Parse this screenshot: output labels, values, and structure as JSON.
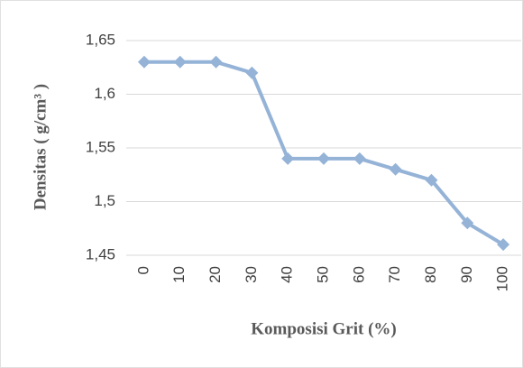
{
  "chart_data": {
    "type": "line",
    "x_label": "Komposisi Grit (%)",
    "y_label": "Densitas ( g/cm³ )",
    "categories": [
      "0",
      "10",
      "20",
      "30",
      "40",
      "50",
      "60",
      "70",
      "80",
      "90",
      "100"
    ],
    "series": [
      {
        "color": "#95b3d7",
        "values": [
          1.63,
          1.63,
          1.63,
          1.62,
          1.54,
          1.54,
          1.54,
          1.53,
          1.52,
          1.48,
          1.46
        ]
      }
    ],
    "ylim": [
      1.45,
      1.65
    ],
    "yticks": [
      {
        "value": 1.45,
        "label": "1,45"
      },
      {
        "value": 1.5,
        "label": "1,5"
      },
      {
        "value": 1.55,
        "label": "1,55"
      },
      {
        "value": 1.6,
        "label": "1,6"
      },
      {
        "value": 1.65,
        "label": "1,65"
      }
    ],
    "grid": true
  }
}
